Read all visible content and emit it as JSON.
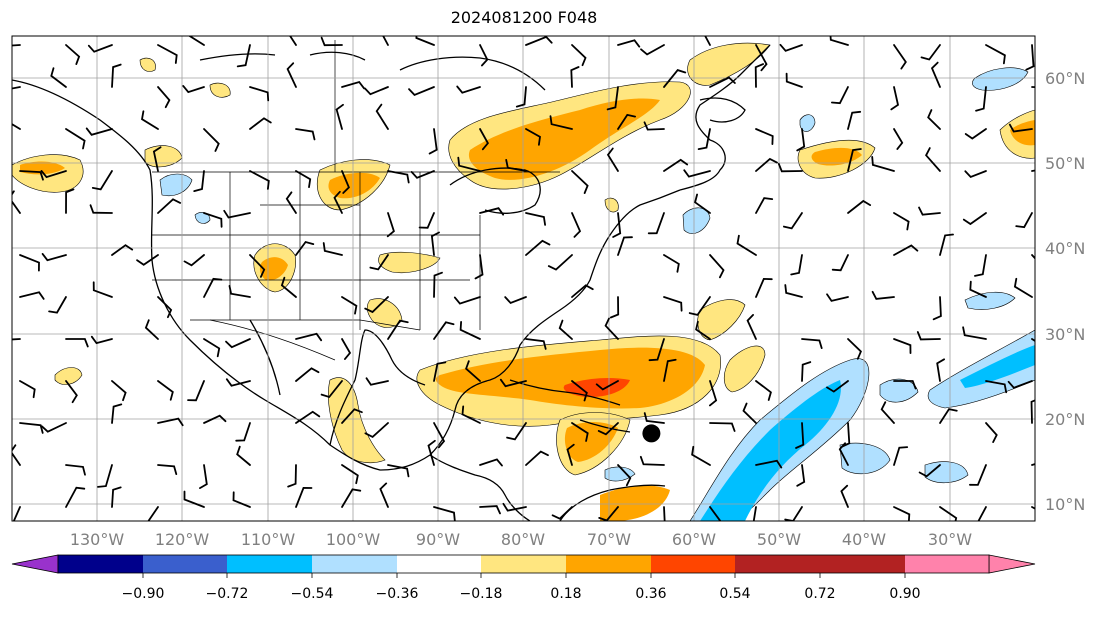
{
  "title": "2024081200 F048",
  "map": {
    "lon_labels": [
      "130°W",
      "120°W",
      "110°W",
      "100°W",
      "90°W",
      "80°W",
      "70°W",
      "60°W",
      "50°W",
      "40°W",
      "30°W"
    ],
    "lat_labels": [
      "60°N",
      "50°N",
      "40°N",
      "30°N",
      "20°N",
      "10°N"
    ],
    "lon_range": [
      -140,
      -20
    ],
    "lat_range": [
      8,
      65
    ],
    "marker": {
      "lon": -65,
      "lat": 18.3
    }
  },
  "colorbar": {
    "ticks": [
      "−0.90",
      "−0.72",
      "−0.54",
      "−0.36",
      "−0.18",
      "0.18",
      "0.36",
      "0.54",
      "0.72",
      "0.90"
    ],
    "colors": [
      "#9932cc",
      "#00008b",
      "#3a5fcd",
      "#00bfff",
      "#b0e0ff",
      "#ffffff",
      "#ffe680",
      "#ffa500",
      "#ff4500",
      "#b22222",
      "#ff82ab"
    ]
  },
  "colors": {
    "pos_light": "#ffe680",
    "pos_mid": "#ffa500",
    "pos_strong": "#ff4500",
    "neg_light": "#b0e0ff",
    "neg_mid": "#00bfff",
    "grid": "#a0a0a0",
    "axis_label": "#808080"
  }
}
